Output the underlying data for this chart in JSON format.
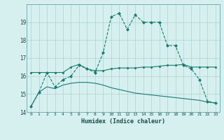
{
  "title": "",
  "xlabel": "Humidex (Indice chaleur)",
  "bg_color": "#d6f0f0",
  "line_color": "#1a7a6e",
  "grid_color": "#b0d0d0",
  "xlim": [
    -0.5,
    23.5
  ],
  "ylim": [
    14,
    20
  ],
  "yticks": [
    14,
    15,
    16,
    17,
    18,
    19
  ],
  "xticks": [
    0,
    1,
    2,
    3,
    4,
    5,
    6,
    7,
    8,
    9,
    10,
    11,
    12,
    13,
    14,
    15,
    16,
    17,
    18,
    19,
    20,
    21,
    22,
    23
  ],
  "series1_x": [
    0,
    1,
    2,
    3,
    4,
    5,
    6,
    7,
    8,
    9,
    10,
    11,
    12,
    13,
    14,
    15,
    16,
    17,
    18,
    19,
    20,
    21,
    22,
    23
  ],
  "series1_y": [
    14.3,
    15.1,
    16.2,
    15.4,
    15.8,
    16.0,
    16.6,
    16.4,
    16.2,
    17.3,
    19.3,
    19.5,
    18.6,
    19.4,
    19.0,
    19.0,
    19.0,
    17.7,
    17.7,
    16.6,
    16.4,
    15.8,
    14.6,
    14.5
  ],
  "series2_x": [
    0,
    1,
    2,
    3,
    4,
    5,
    6,
    7,
    8,
    9,
    10,
    11,
    12,
    13,
    14,
    15,
    16,
    17,
    18,
    19,
    20,
    21,
    22,
    23
  ],
  "series2_y": [
    16.2,
    16.2,
    16.2,
    16.2,
    16.2,
    16.5,
    16.65,
    16.4,
    16.3,
    16.3,
    16.4,
    16.45,
    16.45,
    16.45,
    16.5,
    16.5,
    16.55,
    16.6,
    16.6,
    16.65,
    16.5,
    16.5,
    16.5,
    16.5
  ],
  "series3_x": [
    0,
    1,
    2,
    3,
    4,
    5,
    6,
    7,
    8,
    9,
    10,
    11,
    12,
    13,
    14,
    15,
    16,
    17,
    18,
    19,
    20,
    21,
    22,
    23
  ],
  "series3_y": [
    14.3,
    15.1,
    15.4,
    15.3,
    15.5,
    15.6,
    15.65,
    15.65,
    15.6,
    15.5,
    15.35,
    15.25,
    15.15,
    15.05,
    15.0,
    14.95,
    14.9,
    14.85,
    14.8,
    14.75,
    14.7,
    14.65,
    14.55,
    14.5
  ]
}
